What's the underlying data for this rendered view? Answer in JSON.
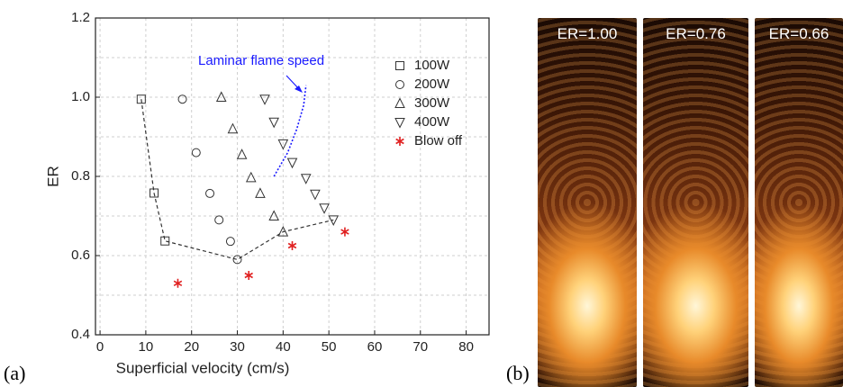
{
  "chart_data": {
    "type": "scatter",
    "xlabel": "Superficial velocity (cm/s)",
    "ylabel": "ER",
    "xlim": [
      -1,
      85
    ],
    "ylim": [
      0.4,
      1.2
    ],
    "xticks": [
      0,
      10,
      20,
      30,
      40,
      50,
      60,
      70,
      80
    ],
    "yticks": [
      0.4,
      0.6,
      0.8,
      {
        "value": 1,
        "label": "1.0"
      },
      1.2
    ],
    "yminor": [
      0.5,
      0.7,
      0.9,
      1.1
    ],
    "grid": true,
    "legend": "upper right",
    "series": [
      {
        "name": "100W",
        "marker": "square",
        "color": "#333333",
        "x": [
          9,
          11.8,
          14.2
        ],
        "values": [
          0.995,
          0.758,
          0.637
        ]
      },
      {
        "name": "200W",
        "marker": "circle",
        "color": "#333333",
        "x": [
          18,
          21,
          24,
          26,
          28.5,
          30
        ],
        "values": [
          0.995,
          0.86,
          0.757,
          0.69,
          0.636,
          0.59
        ]
      },
      {
        "name": "300W",
        "marker": "triangle",
        "color": "#333333",
        "x": [
          26.5,
          29,
          31,
          33,
          35,
          38,
          40
        ],
        "values": [
          1.0,
          0.92,
          0.855,
          0.797,
          0.757,
          0.7,
          0.66
        ]
      },
      {
        "name": "400W",
        "marker": "triangle-down",
        "color": "#333333",
        "x": [
          36,
          38,
          40,
          42,
          45,
          47,
          49,
          51
        ],
        "values": [
          0.995,
          0.937,
          0.882,
          0.835,
          0.795,
          0.755,
          0.72,
          0.69
        ]
      },
      {
        "name": "Blow off",
        "marker": "asterisk",
        "color": "#e02020",
        "x": [
          17,
          32.5,
          42,
          53.5
        ],
        "values": [
          0.53,
          0.55,
          0.625,
          0.66
        ]
      }
    ],
    "boundary": {
      "color": "#333333",
      "x": [
        9,
        11.8,
        14.2,
        30,
        40,
        51
      ],
      "y": [
        0.995,
        0.758,
        0.637,
        0.59,
        0.66,
        0.69
      ]
    },
    "flame_speed": {
      "label": "Laminar flame speed",
      "color": "#1a1aff",
      "x": [
        38,
        41,
        43,
        44.5,
        45
      ],
      "y": [
        0.8,
        0.86,
        0.92,
        0.98,
        1.03
      ]
    }
  },
  "panels": {
    "a": "(a)",
    "b": "(b)"
  },
  "photos": [
    "ER=1.00",
    "ER=0.76",
    "ER=0.66"
  ]
}
